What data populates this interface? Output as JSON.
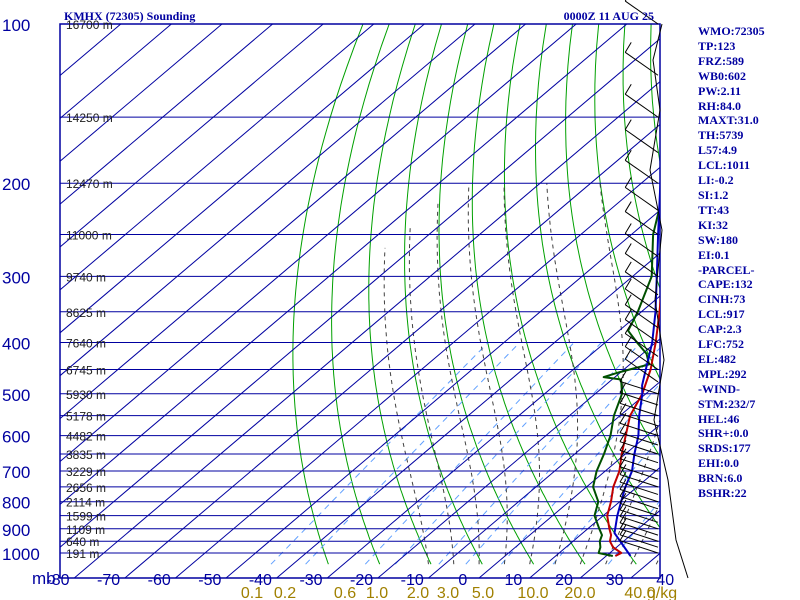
{
  "header": {
    "station": "KMHX (72305) Sounding",
    "datetime": "0000Z 11 AUG 25"
  },
  "stats": [
    "WMO:72305",
    "TP:123",
    "FRZ:589",
    "WB0:602",
    "PW:2.11",
    "RH:84.0",
    "MAXT:31.0",
    "TH:5739",
    "L57:4.9",
    "LCL:1011",
    "LI:-0.2",
    "SI:1.2",
    "TT:43",
    "KI:32",
    "SW:180",
    "EI:0.1",
    "-PARCEL-",
    "CAPE:132",
    "CINH:73",
    "LCL:917",
    "CAP:2.3",
    "LFC:752",
    "EL:482",
    "MPL:292",
    "-WIND-",
    "STM:232/7",
    "HEL:46",
    "SHR+:0.0",
    "SRDS:177",
    "EHI:0.0",
    "BRN:6.0",
    "BSHR:22"
  ],
  "colors": {
    "frame": "#0000a0",
    "grid": "#0000a0",
    "dry_adiabat": "#00a000",
    "moist_adiabat": "#404040",
    "mixing_ratio": "#60a0ff",
    "temperature": "#c00000",
    "dewpoint": "#005000",
    "parcel": "#0000c0",
    "wind": "#000000"
  },
  "chart_data": {
    "type": "line",
    "title": "KMHX (72305) Sounding",
    "subtitle": "0000Z 11 AUG 25",
    "yscale": "log",
    "pressure_ticks": [
      100,
      200,
      300,
      400,
      500,
      600,
      700,
      800,
      900,
      1000
    ],
    "pressure_unit_label": "mb",
    "temperature_ticks": [
      -80,
      -70,
      -60,
      -50,
      -40,
      -30,
      -20,
      -10,
      0,
      10,
      20,
      30,
      40
    ],
    "xlim": [
      -80,
      40
    ],
    "ylim": [
      1050,
      100
    ],
    "height_labels": [
      {
        "p": 100,
        "label": "16700 m"
      },
      {
        "p": 150,
        "label": "14250 m"
      },
      {
        "p": 200,
        "label": "12470 m"
      },
      {
        "p": 250,
        "label": "11000 m"
      },
      {
        "p": 300,
        "label": "9740 m"
      },
      {
        "p": 350,
        "label": "8625 m"
      },
      {
        "p": 400,
        "label": "7640 m"
      },
      {
        "p": 450,
        "label": "6745 m"
      },
      {
        "p": 500,
        "label": "5930 m"
      },
      {
        "p": 550,
        "label": "5178 m"
      },
      {
        "p": 600,
        "label": "4482 m"
      },
      {
        "p": 650,
        "label": "3835 m"
      },
      {
        "p": 700,
        "label": "3229 m"
      },
      {
        "p": 750,
        "label": "2656 m"
      },
      {
        "p": 800,
        "label": "2114 m"
      },
      {
        "p": 850,
        "label": "1599 m"
      },
      {
        "p": 900,
        "label": "1109 m"
      },
      {
        "p": 950,
        "label": "640 m"
      },
      {
        "p": 1000,
        "label": "191 m"
      }
    ],
    "mixing_ratio_labels": [
      "0.1",
      "0.2",
      "0.6",
      "1.0",
      "2.0",
      "3.0",
      "5.0",
      "10.0",
      "20.0",
      "40.0",
      "g/kg"
    ],
    "series": [
      {
        "key": "temperature",
        "points": [
          [
            1013,
            25.0
          ],
          [
            1000,
            25.5
          ],
          [
            975,
            22.5
          ],
          [
            950,
            20.5
          ],
          [
            925,
            19.3
          ],
          [
            900,
            17.5
          ],
          [
            850,
            14.0
          ],
          [
            800,
            11.5
          ],
          [
            750,
            8.5
          ],
          [
            700,
            6.0
          ],
          [
            650,
            2.5
          ],
          [
            600,
            -1.0
          ],
          [
            550,
            -4.8
          ],
          [
            500,
            -7.5
          ],
          [
            450,
            -11.5
          ],
          [
            400,
            -16.8
          ],
          [
            350,
            -23.2
          ],
          [
            300,
            -30.8
          ],
          [
            250,
            -40.3
          ],
          [
            200,
            -50.2
          ],
          [
            170,
            -56.0
          ],
          [
            150,
            -61.5
          ],
          [
            140,
            -64.0
          ],
          [
            130,
            -66.5
          ],
          [
            120,
            -67.0
          ],
          [
            110,
            -67.5
          ],
          [
            100,
            -66.5
          ]
        ]
      },
      {
        "key": "dewpoint",
        "points": [
          [
            1013,
            24.5
          ],
          [
            1000,
            21.0
          ],
          [
            975,
            20.0
          ],
          [
            950,
            18.5
          ],
          [
            925,
            17.5
          ],
          [
            900,
            15.5
          ],
          [
            850,
            11.5
          ],
          [
            800,
            9.0
          ],
          [
            750,
            4.5
          ],
          [
            700,
            1.5
          ],
          [
            650,
            -1.0
          ],
          [
            600,
            -4.0
          ],
          [
            550,
            -8.0
          ],
          [
            500,
            -11.5
          ],
          [
            470,
            -15.0
          ],
          [
            465,
            -19.0
          ],
          [
            455,
            -17.0
          ],
          [
            440,
            -13.0
          ],
          [
            420,
            -16.0
          ],
          [
            400,
            -20.5
          ],
          [
            380,
            -25.0
          ],
          [
            350,
            -27.5
          ],
          [
            300,
            -33.0
          ],
          [
            250,
            -42.5
          ],
          [
            200,
            -52.0
          ],
          [
            170,
            -60.0
          ],
          [
            150,
            -65.0
          ],
          [
            130,
            -69.5
          ],
          [
            120,
            -70.0
          ],
          [
            110,
            -71.0
          ],
          [
            100,
            -72.5
          ]
        ]
      },
      {
        "key": "parcel",
        "points": [
          [
            1013,
            28.0
          ],
          [
            917,
            19.5
          ],
          [
            850,
            16.0
          ],
          [
            800,
            13.5
          ],
          [
            752,
            11.0
          ],
          [
            700,
            8.5
          ],
          [
            650,
            5.0
          ],
          [
            600,
            1.5
          ],
          [
            550,
            -3.0
          ],
          [
            500,
            -7.5
          ],
          [
            482,
            -9.5
          ],
          [
            400,
            -17.5
          ],
          [
            350,
            -24.0
          ],
          [
            300,
            -32.0
          ],
          [
            250,
            -41.5
          ],
          [
            200,
            -53.0
          ],
          [
            150,
            -68.0
          ],
          [
            140,
            -71.0
          ]
        ]
      }
    ]
  }
}
